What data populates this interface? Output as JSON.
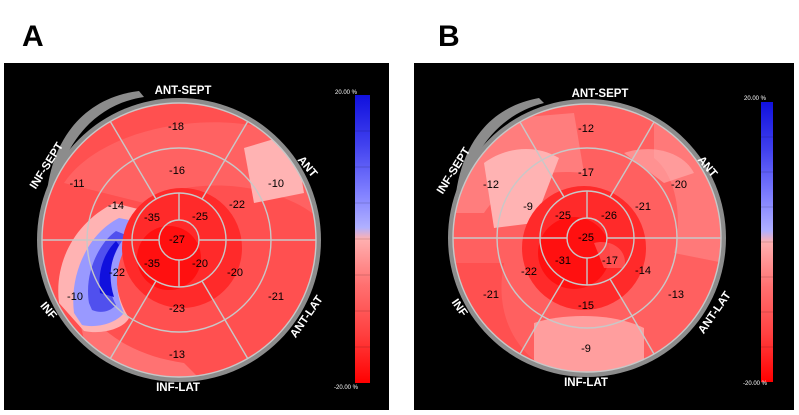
{
  "panels": [
    {
      "letter": "A",
      "walls": {
        "ant_sept": "ANT-SEPT",
        "ant": "ANT",
        "ant_lat": "ANT-LAT",
        "inf_lat": "INF-LAT",
        "inf": "INF",
        "inf_sept": "INF-SEPT"
      },
      "segments": {
        "basal": [
          "-18",
          "-10",
          "-21",
          "-13",
          "-10",
          "-11"
        ],
        "mid": [
          "-16",
          "-22",
          "-20",
          "-23",
          "-22",
          "-14"
        ],
        "apical": [
          "-25",
          "-20",
          "-35",
          "-35"
        ],
        "apex": "-27"
      },
      "scale": {
        "top": "20.00 %",
        "bottom": "-20.00 %"
      }
    },
    {
      "letter": "B",
      "walls": {
        "ant_sept": "ANT-SEPT",
        "ant": "ANT",
        "ant_lat": "ANT-LAT",
        "inf_lat": "INF-LAT",
        "inf": "INF",
        "inf_sept": "INF-SEPT"
      },
      "segments": {
        "basal": [
          "-12",
          "-20",
          "-13",
          "-9",
          "-21",
          "-12"
        ],
        "mid": [
          "-17",
          "-21",
          "-14",
          "-15",
          "-22",
          "-9"
        ],
        "apical": [
          "-26",
          "-17",
          "-31",
          "-25"
        ],
        "apex": "-25"
      },
      "scale": {
        "top": "20.00 %",
        "bottom": "-20.00 %"
      }
    }
  ],
  "colors": {
    "background": "#000000",
    "ring": "#8c8c8c",
    "red_strong": "#ff1a1a",
    "red_mid": "#ff4d4d",
    "red_light": "#ff8080",
    "pink": "#ffb3b3",
    "blue_light": "#9999ff",
    "blue_mid": "#5050ee",
    "blue_dark": "#1010dd"
  }
}
